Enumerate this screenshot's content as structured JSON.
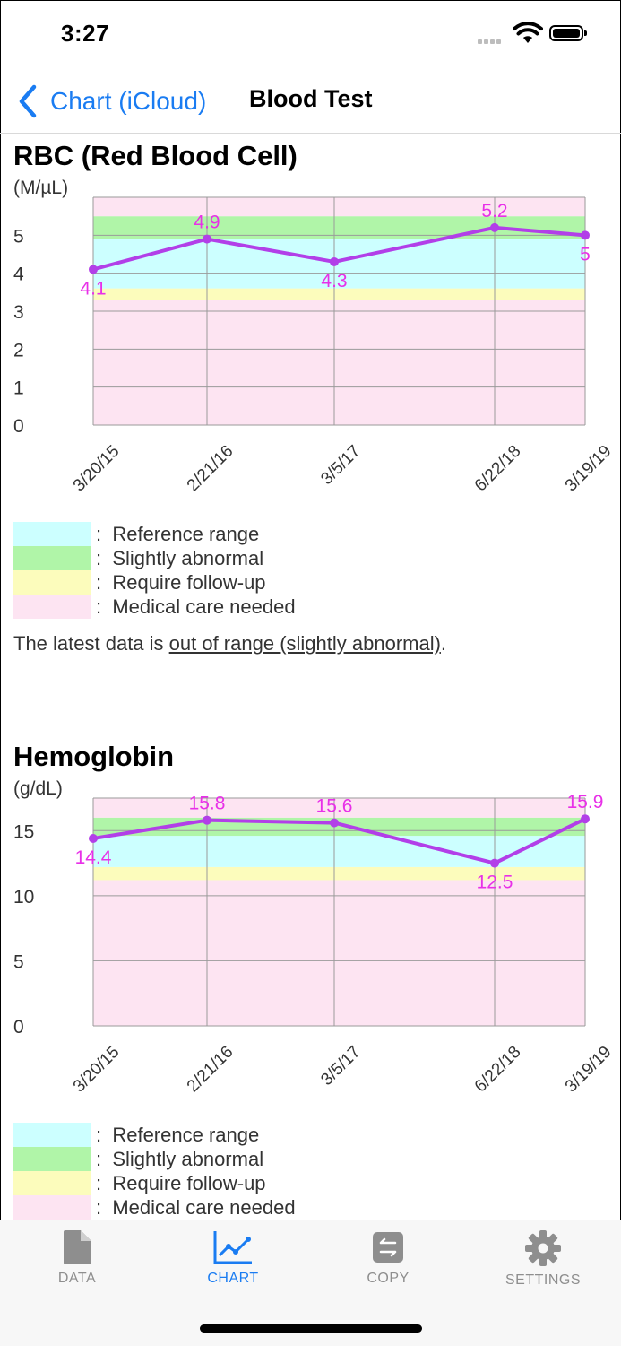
{
  "status_bar": {
    "time": "3:27"
  },
  "nav": {
    "back_label": "Chart (iCloud)",
    "title": "Blood Test"
  },
  "legend": [
    {
      "label": "Reference range",
      "color": "#ccffff"
    },
    {
      "label": "Slightly abnormal",
      "color": "#b0f5a8"
    },
    {
      "label": "Require follow-up",
      "color": "#fcfcbc"
    },
    {
      "label": "Medical care needed",
      "color": "#fde4f2"
    }
  ],
  "legend_separator": ":",
  "line_color": "#b23fe8",
  "label_color": "#e830e8",
  "tabs": [
    {
      "label": "DATA",
      "icon": "document-icon"
    },
    {
      "label": "CHART",
      "icon": "chart-icon",
      "active": true
    },
    {
      "label": "COPY",
      "icon": "copy-icon"
    },
    {
      "label": "SETTINGS",
      "icon": "gear-icon"
    }
  ],
  "chart_data": [
    {
      "type": "line",
      "title": "RBC (Red Blood Cell)",
      "ylabel": "(M/µL)",
      "x": [
        "3/20/15",
        "2/21/16",
        "3/5/17",
        "6/22/18",
        "3/19/19"
      ],
      "values": [
        4.1,
        4.9,
        4.3,
        5.2,
        5
      ],
      "labels": [
        "4.1",
        "4.9",
        "4.3",
        "5.2",
        "5"
      ],
      "yticks": [
        "0",
        "1",
        "2",
        "3",
        "4",
        "5"
      ],
      "ylim": [
        0,
        6
      ],
      "bands": [
        {
          "zone": "medical",
          "from": 0,
          "to": 3.3
        },
        {
          "zone": "follow",
          "from": 3.3,
          "to": 3.6
        },
        {
          "zone": "reference",
          "from": 3.6,
          "to": 4.9
        },
        {
          "zone": "slight",
          "from": 4.9,
          "to": 5.5
        },
        {
          "zone": "medical",
          "from": 5.5,
          "to": 6
        }
      ],
      "status_prefix": "The latest data is ",
      "status_link": "out of range (slightly abnormal)",
      "status_suffix": "."
    },
    {
      "type": "line",
      "title": "Hemoglobin",
      "ylabel": "(g/dL)",
      "x": [
        "3/20/15",
        "2/21/16",
        "3/5/17",
        "6/22/18",
        "3/19/19"
      ],
      "values": [
        14.4,
        15.8,
        15.6,
        12.5,
        15.9
      ],
      "labels": [
        "14.4",
        "15.8",
        "15.6",
        "12.5",
        "15.9"
      ],
      "yticks": [
        "0",
        "5",
        "10",
        "15"
      ],
      "ylim": [
        0,
        17.5
      ],
      "bands": [
        {
          "zone": "medical",
          "from": 0,
          "to": 11.2
        },
        {
          "zone": "follow",
          "from": 11.2,
          "to": 12.2
        },
        {
          "zone": "reference",
          "from": 12.2,
          "to": 14.6
        },
        {
          "zone": "slight",
          "from": 14.6,
          "to": 16.0
        },
        {
          "zone": "medical",
          "from": 16.0,
          "to": 17.5
        }
      ]
    }
  ]
}
